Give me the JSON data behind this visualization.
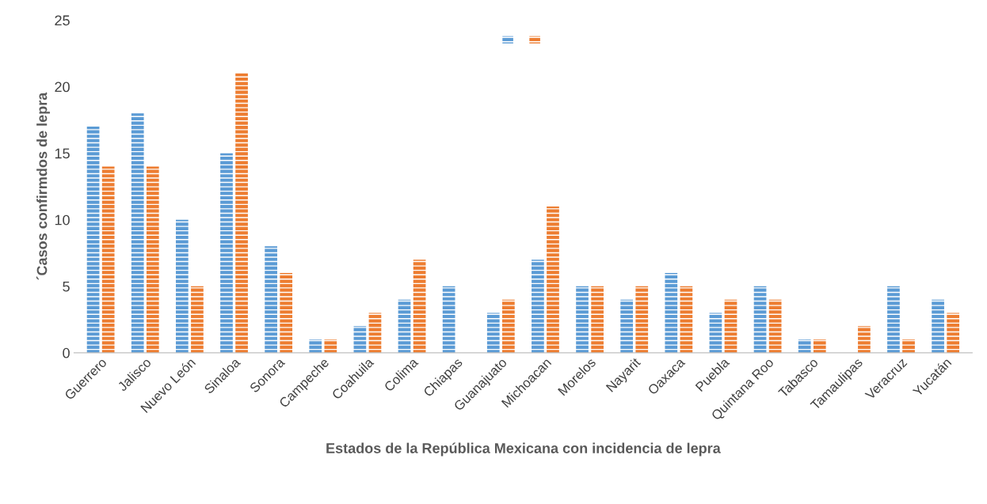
{
  "chart_data": {
    "type": "bar",
    "xlabel": "Estados de la República Mexicana con incidencia de lepra",
    "ylabel": "´Casos confirmdos de lepra",
    "categories": [
      "Guerrero",
      "Jalisco",
      "Nuevo León",
      "Sinaloa",
      "Sonora",
      "Campeche",
      "Coahuila",
      "Colima",
      "Chiapas",
      "Guanajuato",
      "Michoacan",
      "Morelos",
      "Nayarit",
      "Oaxaca",
      "Puebla",
      "Quintana Roo",
      "Tabasco",
      "Tamaulipas",
      "Veracruz",
      "Yucatán"
    ],
    "series": [
      {
        "color": "#5b9bd5",
        "values": [
          17,
          18,
          10,
          15,
          8,
          1,
          2,
          4,
          5,
          3,
          7,
          5,
          4,
          6,
          3,
          5,
          1,
          null,
          5,
          4
        ]
      },
      {
        "color": "#ed7d31",
        "values": [
          14,
          14,
          5,
          21,
          6,
          1,
          3,
          7,
          null,
          4,
          11,
          5,
          5,
          5,
          4,
          4,
          1,
          2,
          1,
          3
        ]
      }
    ],
    "ylim": [
      0,
      25
    ],
    "yticks": [
      0,
      5,
      10,
      15,
      20,
      25
    ],
    "grid": false
  }
}
